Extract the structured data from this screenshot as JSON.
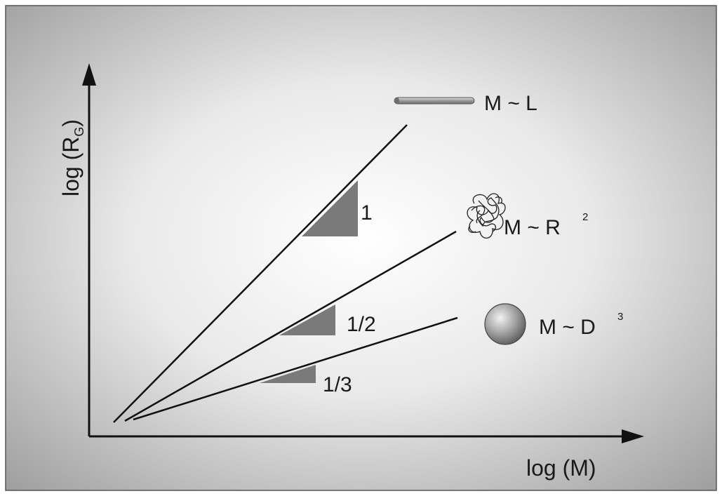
{
  "axes": {
    "x_label": "log (M)",
    "y_label_main": "log (R",
    "y_label_sub": "G",
    "y_label_close": ")"
  },
  "slopes": [
    {
      "label": "1",
      "relation_base": "M ~ L",
      "relation_exp": "",
      "shape": "rod"
    },
    {
      "label": "1/2",
      "relation_base": "M ~ R",
      "relation_exp": "2",
      "shape": "coil"
    },
    {
      "label": "1/3",
      "relation_base": "M ~ D",
      "relation_exp": "3",
      "shape": "sphere"
    }
  ],
  "colors": {
    "frame": "#555555",
    "triangle": "#7a7a7a",
    "line": "#111111",
    "text": "#1a1a1a"
  }
}
